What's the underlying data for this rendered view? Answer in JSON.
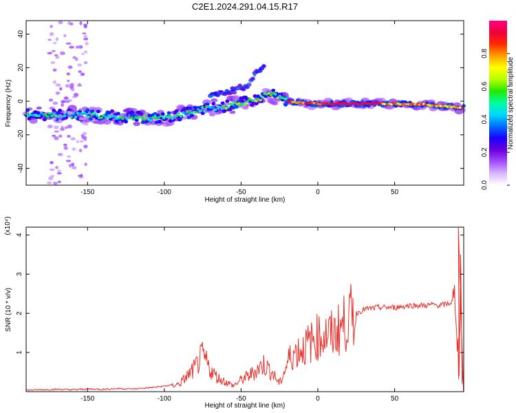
{
  "figure_title": "C2E1.2024.291.04.15.R17",
  "chart_data": [
    {
      "type": "heatmap",
      "title": "C2E1.2024.291.04.15.R17",
      "xlabel": "Height of straight line (km)",
      "ylabel": "Frequency (Hz)",
      "xlim": [
        -190,
        95
      ],
      "ylim": [
        -50,
        48
      ],
      "x_ticks": [
        -150,
        -100,
        -50,
        0,
        50
      ],
      "y_ticks": [
        -40,
        -20,
        0,
        20,
        40
      ],
      "colorbar": {
        "label": "Normalized spectral amplitude",
        "range": [
          0,
          1
        ],
        "ticks": [
          "0.0",
          "0.2",
          "0.4",
          "0.6",
          "0.8"
        ],
        "colors": [
          "#ffffff",
          "#d9b8ff",
          "#a24dff",
          "#6a00d8",
          "#1a00ff",
          "#006cff",
          "#00d8ff",
          "#00ff9c",
          "#22e800",
          "#b8ff00",
          "#ffff00",
          "#ffa000",
          "#ff2a00",
          "#f0003c",
          "#ff0080"
        ]
      },
      "main_ridge": {
        "x": [
          -190,
          -170,
          -150,
          -130,
          -110,
          -100,
          -90,
          -80,
          -70,
          -60,
          -50,
          -40,
          -35,
          -30,
          -25,
          -20,
          -10,
          0,
          20,
          50,
          70,
          85,
          92
        ],
        "y": [
          -8,
          -8,
          -8,
          -9,
          -10,
          -10,
          -8,
          -6,
          -4,
          -3,
          -1,
          1,
          3,
          4,
          2,
          0,
          -1,
          -1.5,
          -1.5,
          -1.5,
          -2,
          -3,
          -4
        ]
      },
      "upper_branch": {
        "x": [
          -70,
          -60,
          -50,
          -45,
          -40,
          -37,
          -34
        ],
        "y": [
          3,
          5,
          8,
          10,
          17,
          20,
          22
        ]
      }
    },
    {
      "type": "line",
      "xlabel": "Height of straight line (km)",
      "ylabel": "SNR (10 * v/v)",
      "y_scale_label": "(x10⁴)",
      "xlim": [
        -190,
        95
      ],
      "ylim": [
        0,
        4.2
      ],
      "x_ticks": [
        -150,
        -100,
        -50,
        0,
        50
      ],
      "y_ticks": [
        1,
        2,
        3,
        4
      ],
      "series": [
        {
          "color": "#e8302a",
          "x": [
            -190,
            -180,
            -170,
            -160,
            -150,
            -140,
            -130,
            -120,
            -110,
            -100,
            -95,
            -90,
            -85,
            -80,
            -77,
            -75,
            -72,
            -70,
            -65,
            -60,
            -55,
            -50,
            -45,
            -40,
            -35,
            -30,
            -25,
            -22,
            -20,
            -18,
            -15,
            -10,
            -5,
            0,
            5,
            10,
            15,
            20,
            25,
            30,
            40,
            50,
            60,
            70,
            75,
            80,
            85,
            88,
            90,
            91,
            92,
            93,
            94
          ],
          "y": [
            0.02,
            0.03,
            0.04,
            0.03,
            0.05,
            0.04,
            0.06,
            0.05,
            0.08,
            0.12,
            0.15,
            0.2,
            0.4,
            0.6,
            0.8,
            0.9,
            0.7,
            0.55,
            0.35,
            0.25,
            0.15,
            0.3,
            0.4,
            0.55,
            0.7,
            0.5,
            0.2,
            0.5,
            0.7,
            0.9,
            1.0,
            1.1,
            1.25,
            1.4,
            1.45,
            1.45,
            1.65,
            1.85,
            2.0,
            2.1,
            2.15,
            2.15,
            2.2,
            2.2,
            2.22,
            2.2,
            2.25,
            2.3,
            2.3,
            1.2,
            0.5,
            3.2,
            0.3
          ]
        }
      ]
    }
  ]
}
